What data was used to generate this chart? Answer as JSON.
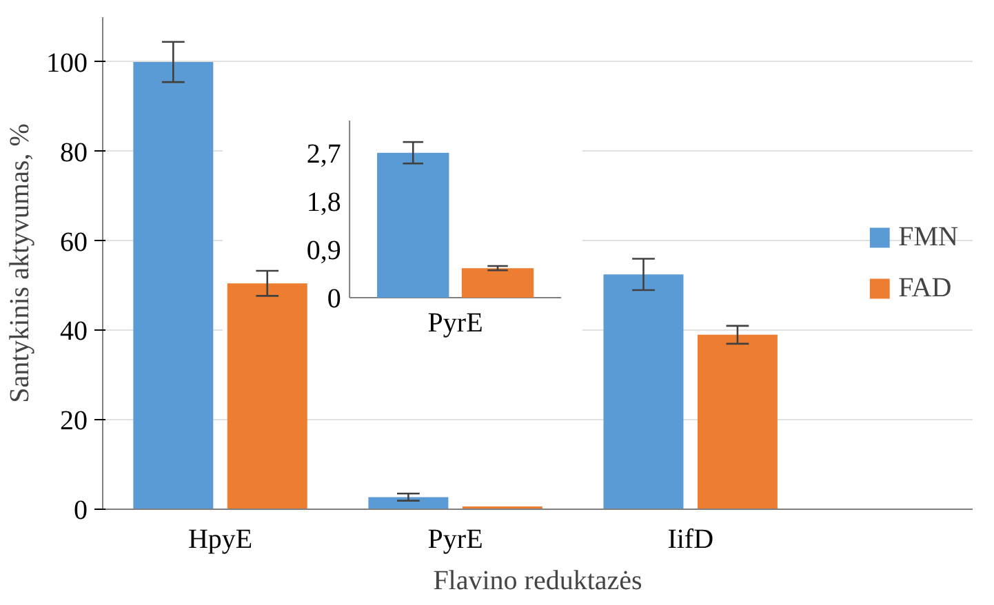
{
  "chart_data": [
    {
      "type": "bar",
      "xlabel": "Flavino reduktazės",
      "ylabel": "Santykinis aktyvumas, %",
      "categories": [
        "HpyE",
        "PyrE",
        "IifD"
      ],
      "series": [
        {
          "name": "FMN",
          "color": "#5b9bd5",
          "values": [
            100,
            2.7,
            52.5
          ],
          "errors": [
            4.5,
            0.8,
            3.5
          ]
        },
        {
          "name": "FAD",
          "color": "#ed7d31",
          "values": [
            50.5,
            0.6,
            39
          ],
          "errors": [
            2.8,
            null,
            2
          ]
        }
      ],
      "ylim": [
        0,
        110
      ],
      "yticks": [
        0,
        20,
        40,
        60,
        80,
        100
      ],
      "grid": "y",
      "legend": "right"
    },
    {
      "type": "bar",
      "categories": [
        "PyrE"
      ],
      "series": [
        {
          "color": "#5b9bd5",
          "values": [
            2.7
          ],
          "errors": [
            0.2
          ]
        },
        {
          "color": "#ed7d31",
          "values": [
            0.55
          ],
          "errors": [
            0.04
          ]
        }
      ],
      "ylim": [
        0,
        3.3
      ],
      "yticks": [
        0,
        {
          "value": 0.9,
          "label": "0,9"
        },
        {
          "value": 1.8,
          "label": "1,8"
        },
        {
          "value": 2.7,
          "label": "2,7"
        }
      ]
    }
  ]
}
